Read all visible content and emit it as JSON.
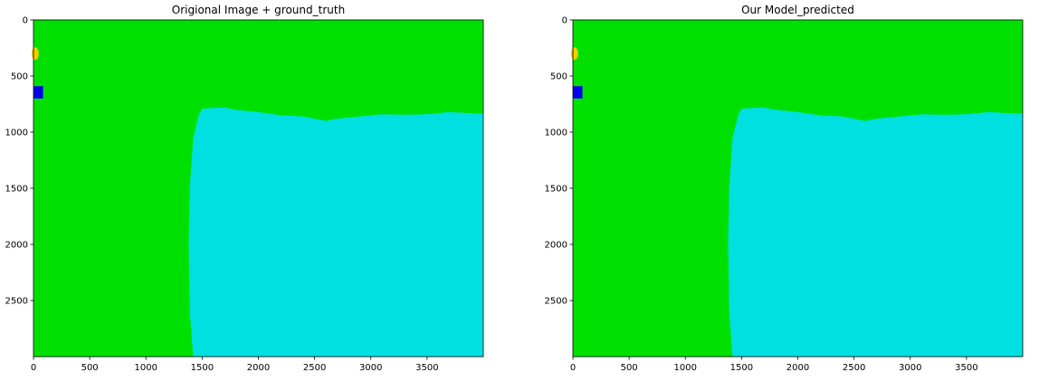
{
  "panels": [
    {
      "title": "Origional Image + ground_truth",
      "xlim": [
        0,
        4000
      ],
      "ylim": [
        3000,
        0
      ],
      "xticks": [
        0,
        500,
        1000,
        1500,
        2000,
        2500,
        3000,
        3500
      ],
      "yticks": [
        0,
        500,
        1000,
        1500,
        2000,
        2500
      ]
    },
    {
      "title": "Our Model_predicted",
      "xlim": [
        0,
        4000
      ],
      "ylim": [
        3000,
        0
      ],
      "xticks": [
        0,
        500,
        1000,
        1500,
        2000,
        2500,
        3000,
        3500
      ],
      "yticks": [
        0,
        500,
        1000,
        1500,
        2000,
        2500
      ]
    }
  ],
  "colors": {
    "background_class": "#00e000",
    "region_class": "#00e0e0",
    "small_blue_object": "#0000ee",
    "small_yellow_object": "#f0d000"
  }
}
